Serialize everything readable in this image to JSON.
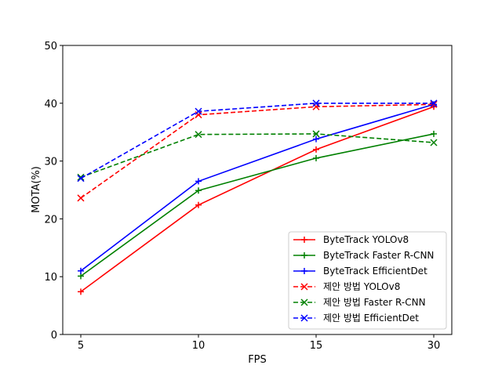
{
  "chart_data": {
    "type": "line",
    "xlabel": "FPS",
    "ylabel": "MOTA(%)",
    "categories": [
      "5",
      "10",
      "15",
      "30"
    ],
    "ylim": [
      0,
      50
    ],
    "yticks": [
      "0",
      "10",
      "20",
      "30",
      "40",
      "50"
    ],
    "grid": false,
    "legend_position": "lower-right",
    "series": [
      {
        "name": "ByteTrack YOLOv8",
        "color": "#ff0000",
        "linestyle": "solid",
        "marker": "plus",
        "values": [
          7.4,
          22.4,
          32.0,
          39.4
        ]
      },
      {
        "name": "ByteTrack Faster R-CNN",
        "color": "#008000",
        "linestyle": "solid",
        "marker": "plus",
        "values": [
          10.1,
          24.9,
          30.5,
          34.7
        ]
      },
      {
        "name": "ByteTrack EfficientDet",
        "color": "#0000ff",
        "linestyle": "solid",
        "marker": "plus",
        "values": [
          11.0,
          26.5,
          33.8,
          39.8
        ]
      },
      {
        "name": "제안 방법 YOLOv8",
        "color": "#ff0000",
        "linestyle": "dashed",
        "marker": "x",
        "values": [
          23.6,
          38.0,
          39.4,
          39.8
        ]
      },
      {
        "name": "제안 방법 Faster R-CNN",
        "color": "#008000",
        "linestyle": "dashed",
        "marker": "x",
        "values": [
          27.2,
          34.6,
          34.7,
          33.2
        ]
      },
      {
        "name": "제안 방법 EfficientDet",
        "color": "#0000ff",
        "linestyle": "dashed",
        "marker": "x",
        "values": [
          27.0,
          38.6,
          40.0,
          40.0
        ]
      }
    ]
  }
}
